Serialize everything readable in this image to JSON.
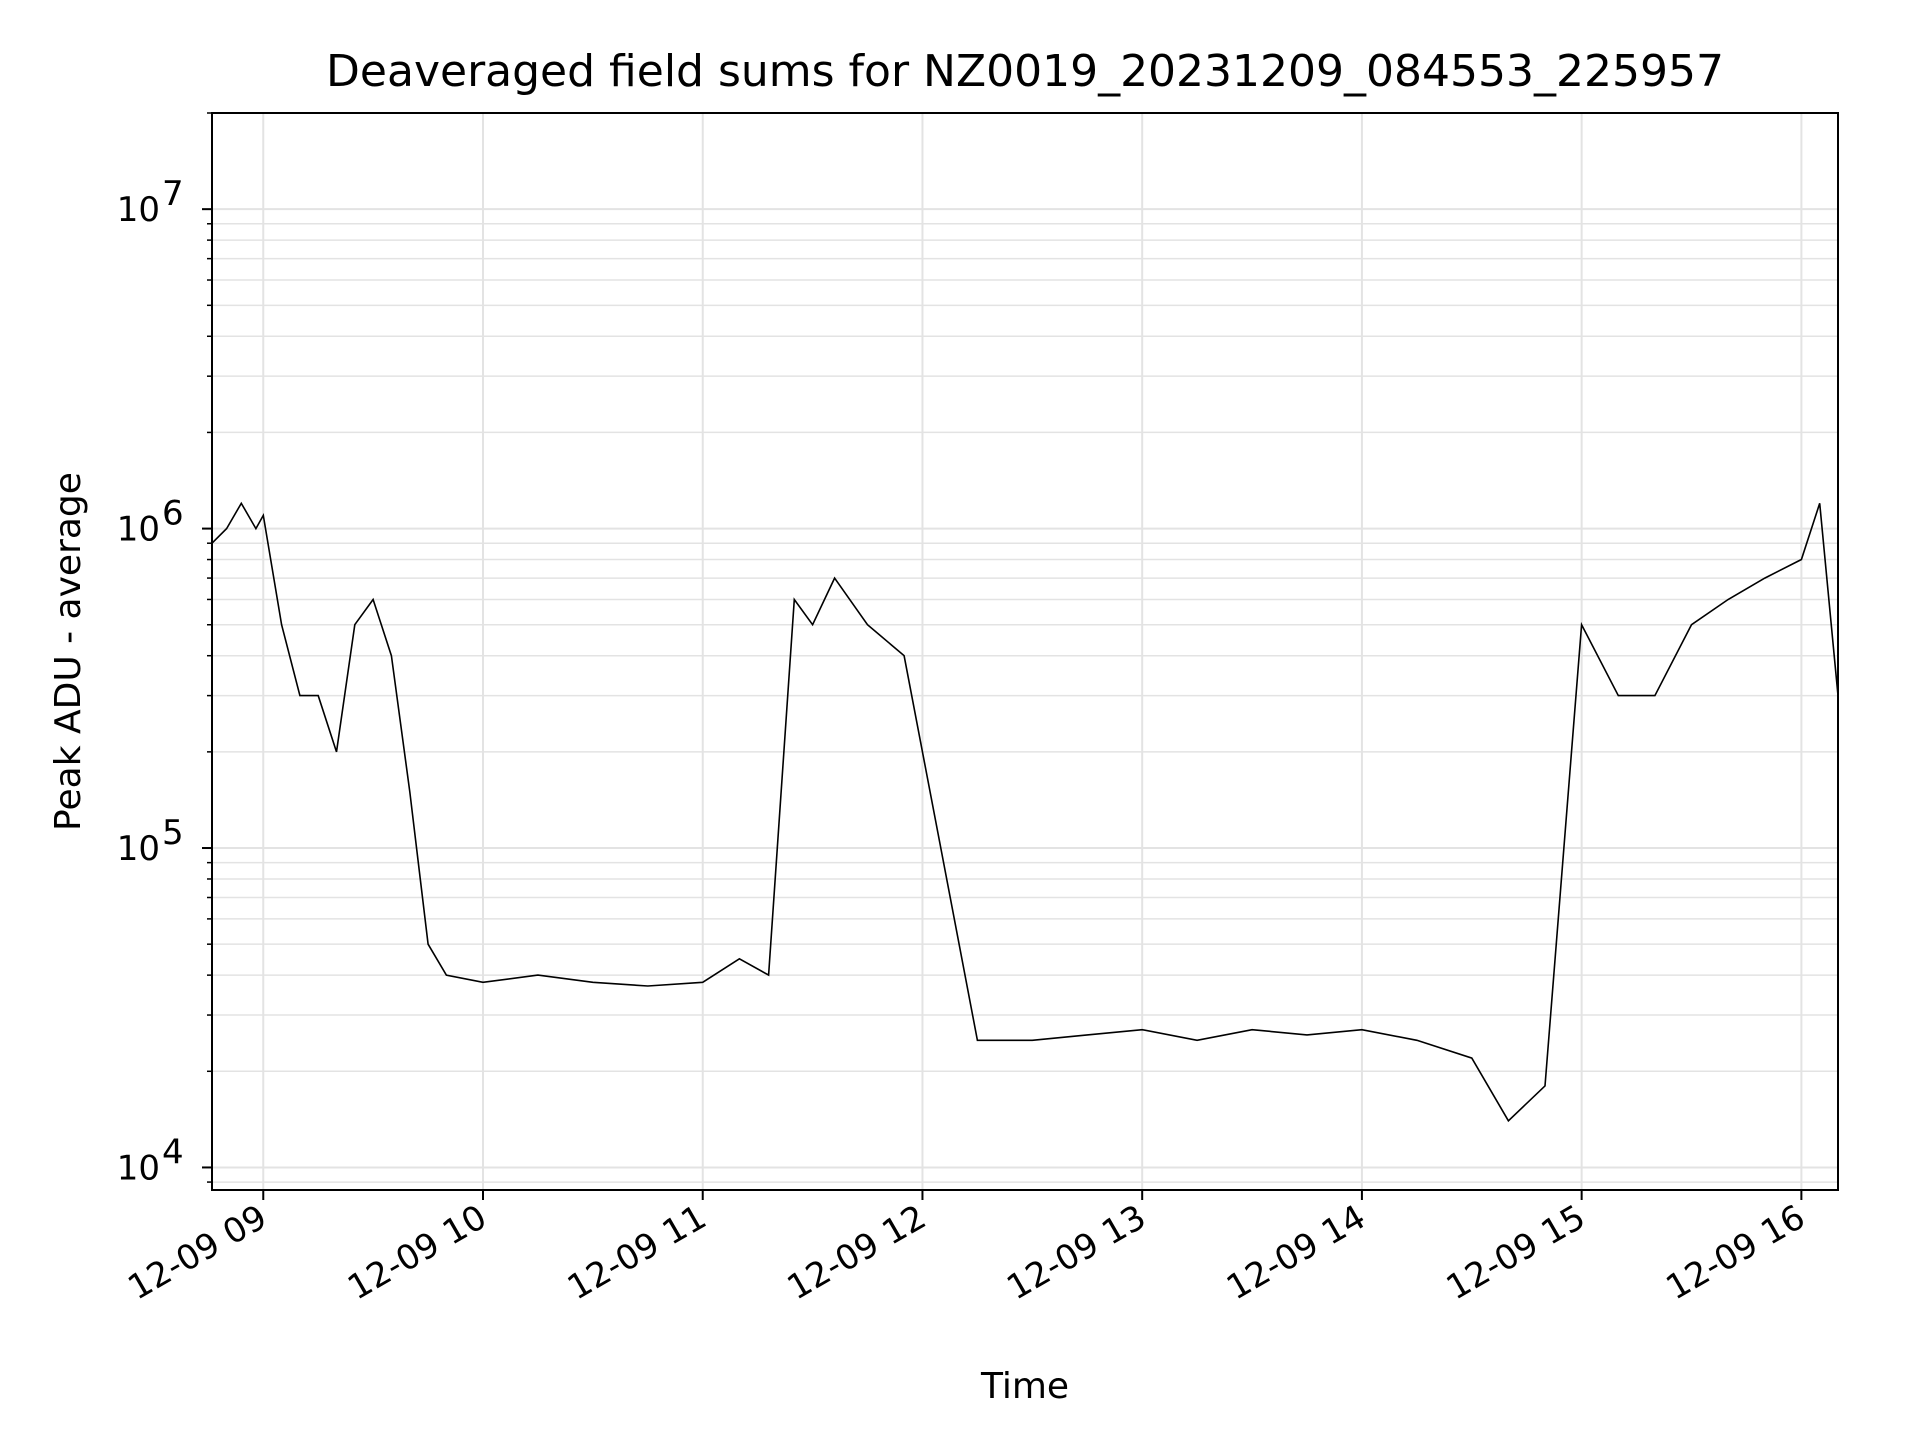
{
  "chart_data": {
    "type": "line",
    "title": "Deaveraged field sums for NZ0019_20231209_084553_225957",
    "xlabel": "Time",
    "ylabel": "Peak ADU - average",
    "yscale": "log",
    "ylim": [
      8500,
      20000000
    ],
    "xlim": [
      "2023-12-09 08:46",
      "2023-12-09 16:10"
    ],
    "grid": true,
    "line_color": "#000000",
    "x_ticks": [
      {
        "value": "2023-12-09 09:00",
        "label": "12-09 09"
      },
      {
        "value": "2023-12-09 10:00",
        "label": "12-09 10"
      },
      {
        "value": "2023-12-09 11:00",
        "label": "12-09 11"
      },
      {
        "value": "2023-12-09 12:00",
        "label": "12-09 12"
      },
      {
        "value": "2023-12-09 13:00",
        "label": "12-09 13"
      },
      {
        "value": "2023-12-09 14:00",
        "label": "12-09 14"
      },
      {
        "value": "2023-12-09 15:00",
        "label": "12-09 15"
      },
      {
        "value": "2023-12-09 16:00",
        "label": "12-09 16"
      }
    ],
    "y_ticks": [
      {
        "value": 10000,
        "base": "10",
        "exp": "4"
      },
      {
        "value": 100000,
        "base": "10",
        "exp": "5"
      },
      {
        "value": 1000000,
        "base": "10",
        "exp": "6"
      },
      {
        "value": 10000000,
        "base": "10",
        "exp": "7"
      }
    ],
    "series": [
      {
        "x": [
          "2023-12-09 08:46",
          "2023-12-09 08:50",
          "2023-12-09 08:54",
          "2023-12-09 08:58",
          "2023-12-09 09:00",
          "2023-12-09 09:05",
          "2023-12-09 09:10",
          "2023-12-09 09:15",
          "2023-12-09 09:20",
          "2023-12-09 09:25",
          "2023-12-09 09:30",
          "2023-12-09 09:35",
          "2023-12-09 09:40",
          "2023-12-09 09:45",
          "2023-12-09 09:50",
          "2023-12-09 10:00",
          "2023-12-09 10:15",
          "2023-12-09 10:30",
          "2023-12-09 10:45",
          "2023-12-09 11:00",
          "2023-12-09 11:10",
          "2023-12-09 11:18",
          "2023-12-09 11:25",
          "2023-12-09 11:30",
          "2023-12-09 11:36",
          "2023-12-09 11:45",
          "2023-12-09 11:55",
          "2023-12-09 12:05",
          "2023-12-09 12:15",
          "2023-12-09 12:30",
          "2023-12-09 12:45",
          "2023-12-09 13:00",
          "2023-12-09 13:15",
          "2023-12-09 13:30",
          "2023-12-09 13:45",
          "2023-12-09 14:00",
          "2023-12-09 14:15",
          "2023-12-09 14:30",
          "2023-12-09 14:40",
          "2023-12-09 14:50",
          "2023-12-09 15:00",
          "2023-12-09 15:10",
          "2023-12-09 15:20",
          "2023-12-09 15:30",
          "2023-12-09 15:40",
          "2023-12-09 15:50",
          "2023-12-09 16:00",
          "2023-12-09 16:05",
          "2023-12-09 16:10"
        ],
        "y": [
          900000,
          1000000,
          1200000,
          1000000,
          1100000,
          500000,
          300000,
          300000,
          200000,
          500000,
          600000,
          400000,
          150000,
          50000,
          40000,
          38000,
          40000,
          38000,
          37000,
          38000,
          45000,
          40000,
          600000,
          500000,
          700000,
          500000,
          400000,
          100000,
          25000,
          25000,
          26000,
          27000,
          25000,
          27000,
          26000,
          27000,
          25000,
          22000,
          14000,
          18000,
          500000,
          300000,
          300000,
          500000,
          600000,
          700000,
          800000,
          1200000,
          300000
        ]
      }
    ]
  }
}
